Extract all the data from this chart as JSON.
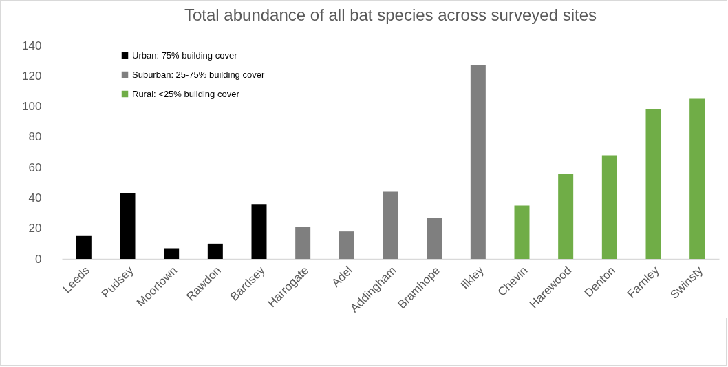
{
  "chart_data": {
    "type": "bar",
    "title": "Total abundance of all bat species across surveyed sites",
    "categories": [
      "Leeds",
      "Pudsey",
      "Moortown",
      "Rawdon",
      "Bardsey",
      "Harrogate",
      "Adel",
      "Addingham",
      "Bramhope",
      "Ilkley",
      "Chevin",
      "Harewood",
      "Denton",
      "Farnley",
      "Swinsty"
    ],
    "series": [
      {
        "name": "Urban: 75% building cover",
        "color": "#000000",
        "values": [
          15,
          43,
          7,
          10,
          36,
          null,
          null,
          null,
          null,
          null,
          null,
          null,
          null,
          null,
          null
        ]
      },
      {
        "name": "Suburban: 25-75% building cover",
        "color": "#7f7f7f",
        "values": [
          null,
          null,
          null,
          null,
          null,
          21,
          18,
          44,
          27,
          127,
          null,
          null,
          null,
          null,
          null
        ]
      },
      {
        "name": "Rural: <25% building cover",
        "color": "#70ad47",
        "values": [
          null,
          null,
          null,
          null,
          null,
          null,
          null,
          null,
          null,
          null,
          35,
          56,
          68,
          98,
          105
        ]
      }
    ],
    "ylim": [
      0,
      140
    ],
    "yticks": [
      0,
      20,
      40,
      60,
      80,
      100,
      120,
      140
    ],
    "grid": false,
    "legend": "top left"
  }
}
